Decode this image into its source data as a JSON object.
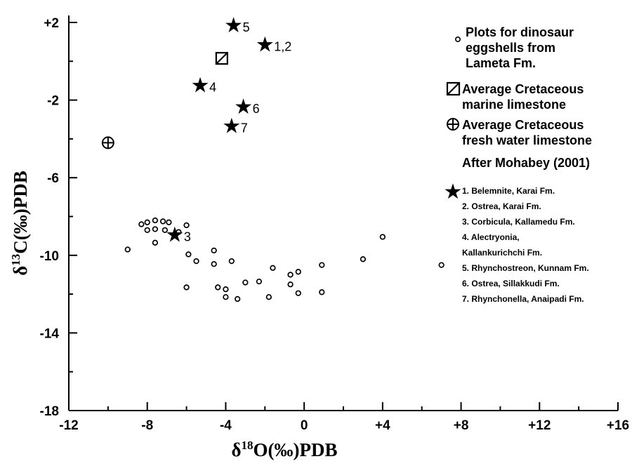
{
  "chart_data": {
    "type": "scatter",
    "xlabel": {
      "pre": "δ",
      "sup": "18",
      "post": "O(‰)PDB"
    },
    "ylabel": {
      "pre": "δ",
      "sup": "13",
      "post": "C(‰)PDB"
    },
    "xlim": [
      -12,
      16
    ],
    "ylim": [
      -18,
      2
    ],
    "xticks": [
      -12,
      -8,
      -4,
      0,
      4,
      8,
      12,
      16
    ],
    "xtick_labels": [
      "-12",
      "-8",
      "-4",
      "0",
      "+4",
      "+8",
      "+12",
      "+16"
    ],
    "yticks": [
      -18,
      -14,
      -10,
      -6,
      -2,
      2
    ],
    "ytick_labels": [
      "-18",
      "-14",
      "-10",
      "-6",
      "-2",
      "+2"
    ],
    "grid": false,
    "eggshells": [
      [
        -8.3,
        -8.4
      ],
      [
        -8.0,
        -8.3
      ],
      [
        -7.6,
        -8.2
      ],
      [
        -7.2,
        -8.25
      ],
      [
        -6.9,
        -8.3
      ],
      [
        -8.0,
        -8.7
      ],
      [
        -7.6,
        -8.65
      ],
      [
        -7.1,
        -8.7
      ],
      [
        -6.4,
        -8.8
      ],
      [
        -6.0,
        -8.45
      ],
      [
        -7.6,
        -9.35
      ],
      [
        -9.0,
        -9.7
      ],
      [
        -5.9,
        -9.95
      ],
      [
        -5.5,
        -10.3
      ],
      [
        -4.6,
        -9.75
      ],
      [
        -4.6,
        -10.45
      ],
      [
        -3.7,
        -10.3
      ],
      [
        -6.0,
        -11.65
      ],
      [
        -4.4,
        -11.65
      ],
      [
        -4.0,
        -11.75
      ],
      [
        -4.0,
        -12.15
      ],
      [
        -3.4,
        -12.25
      ],
      [
        -3.0,
        -11.4
      ],
      [
        -2.3,
        -11.35
      ],
      [
        -1.8,
        -12.15
      ],
      [
        -1.6,
        -10.65
      ],
      [
        -0.7,
        -11.0
      ],
      [
        -0.7,
        -11.5
      ],
      [
        -0.3,
        -10.85
      ],
      [
        -0.3,
        -11.95
      ],
      [
        0.9,
        -10.5
      ],
      [
        0.9,
        -11.9
      ],
      [
        3.0,
        -10.2
      ],
      [
        4.0,
        -9.05
      ],
      [
        7.0,
        -10.5
      ]
    ],
    "marine_limestone": {
      "x": -4.2,
      "y": 0.15
    },
    "freshwater_limestone": {
      "x": -10.0,
      "y": -4.2
    },
    "stars": [
      {
        "x": -3.6,
        "y": 1.9,
        "label": "5"
      },
      {
        "x": -2.0,
        "y": 0.9,
        "label": "1,2"
      },
      {
        "x": -5.3,
        "y": -1.2,
        "label": "4"
      },
      {
        "x": -3.1,
        "y": -2.3,
        "label": "6"
      },
      {
        "x": -3.7,
        "y": -3.3,
        "label": "7"
      },
      {
        "x": -6.6,
        "y": -8.9,
        "label": "3"
      }
    ],
    "legend": {
      "position": "right",
      "eggshell_lines": [
        "Plots for dinosaur",
        "eggshells from",
        "Lameta Fm."
      ],
      "marine_lines": [
        "Average Cretaceous",
        "marine limestone"
      ],
      "freshwater_lines": [
        "Average Cretaceous",
        "fresh water limestone"
      ],
      "source": "After Mohabey (2001)",
      "star_items": [
        "1. Belemnite, Karai Fm.",
        "2. Ostrea, Karai Fm.",
        "3. Corbicula, Kallamedu Fm.",
        "4. Alectryonia,",
        "Kallankurichchi Fm.",
        "5. Rhynchostreon, Kunnam Fm.",
        "6. Ostrea, Sillakkudi Fm.",
        "7. Rhynchonella, Anaipadi Fm."
      ]
    }
  }
}
